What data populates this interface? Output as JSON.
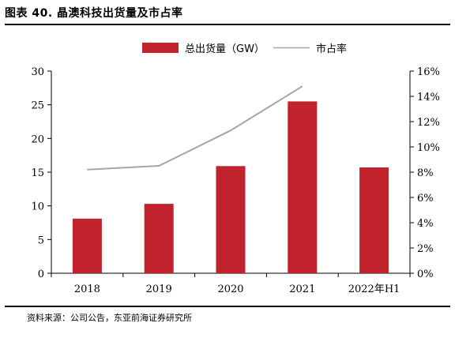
{
  "figure": {
    "title": "图表 40. 晶澳科技出货量及市占率",
    "source": "资料来源：公司公告，东亚前海证券研究所"
  },
  "colors": {
    "bar": "#c0232c",
    "line": "#a6a6a6"
  },
  "chart_data": {
    "type": "bar",
    "categories": [
      "2018",
      "2019",
      "2020",
      "2021",
      "2022年H1"
    ],
    "series": [
      {
        "name": "总出货量（GW）",
        "type": "bar",
        "axis": "left",
        "values": [
          8.1,
          10.3,
          15.9,
          25.5,
          15.7
        ]
      },
      {
        "name": "市占率",
        "type": "line",
        "axis": "right",
        "values": [
          8.2,
          8.5,
          11.3,
          14.8,
          null
        ]
      }
    ],
    "y_left": {
      "min": 0,
      "max": 30,
      "step": 5,
      "ticks": [
        "0",
        "5",
        "10",
        "15",
        "20",
        "25",
        "30"
      ]
    },
    "y_right": {
      "min": 0,
      "max": 16,
      "step": 2,
      "ticks": [
        "0%",
        "2%",
        "4%",
        "6%",
        "8%",
        "10%",
        "12%",
        "14%",
        "16%"
      ]
    },
    "legend_position": "top-center",
    "grid": false
  }
}
